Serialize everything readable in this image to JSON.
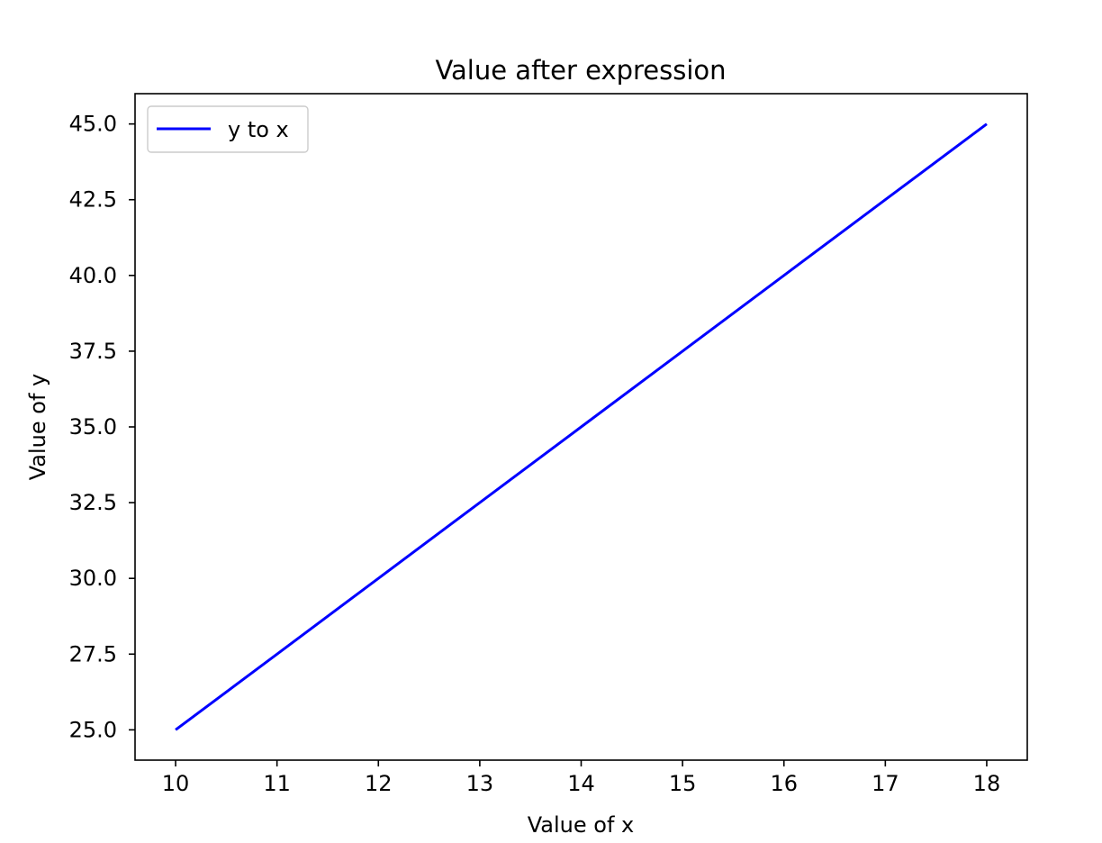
{
  "chart_data": {
    "type": "line",
    "title": "Value after expression",
    "xlabel": "Value of x",
    "ylabel": "Value of y",
    "xlim": [
      9.6,
      18.4
    ],
    "ylim": [
      24,
      46
    ],
    "x_ticks": [
      10,
      11,
      12,
      13,
      14,
      15,
      16,
      17,
      18
    ],
    "x_tick_labels": [
      "10",
      "11",
      "12",
      "13",
      "14",
      "15",
      "16",
      "17",
      "18"
    ],
    "y_ticks": [
      25,
      27.5,
      30,
      32.5,
      35,
      37.5,
      40,
      42.5,
      45
    ],
    "y_tick_labels": [
      "25.0",
      "27.5",
      "30.0",
      "32.5",
      "35.0",
      "37.5",
      "40.0",
      "42.5",
      "45.0"
    ],
    "grid": false,
    "legend_position": "upper-left",
    "series": [
      {
        "name": "y to x",
        "color": "#0000ff",
        "x": [
          10,
          11,
          12,
          13,
          14,
          15,
          16,
          17,
          18
        ],
        "y": [
          25,
          27.5,
          30,
          32.5,
          35,
          37.5,
          40,
          42.5,
          45
        ]
      }
    ]
  }
}
